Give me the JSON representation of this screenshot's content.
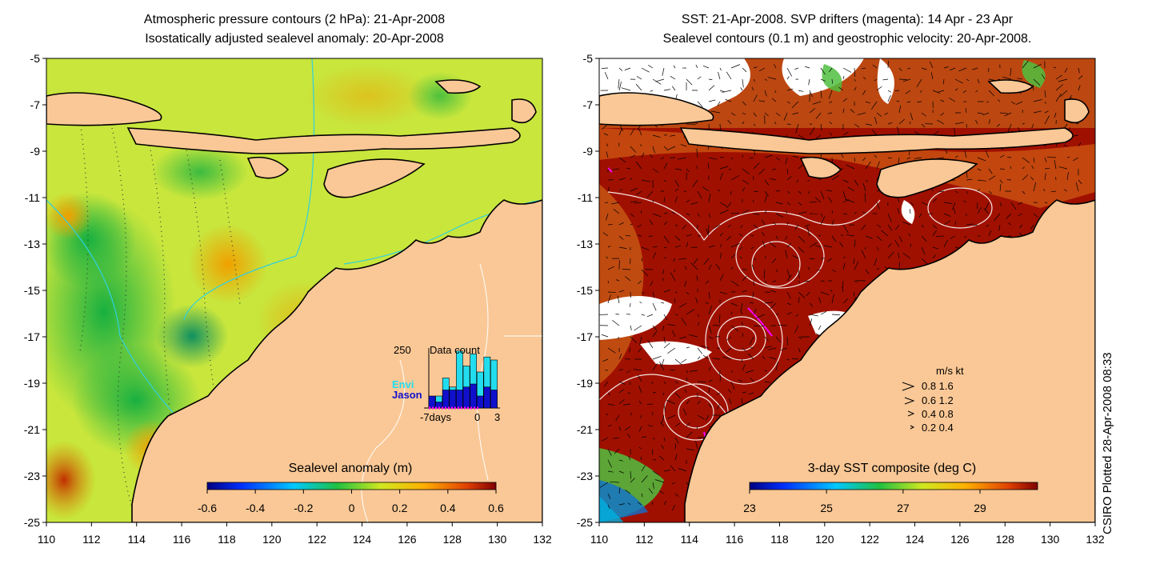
{
  "left_panel": {
    "title_line1": "Atmospheric pressure contours (2 hPa): 21-Apr-2008",
    "title_line2": "Isostatically adjusted sealevel anomaly: 20-Apr-2008",
    "colorbar_label": "Sealevel anomaly (m)",
    "colorbar_ticks": [
      "-0.6",
      "-0.4",
      "-0.2",
      "0",
      "0.2",
      "0.4",
      "0.6"
    ],
    "inset": {
      "max_label": "250",
      "title": "Data count",
      "series": [
        "Envi",
        "Jason"
      ],
      "series_colors": [
        "#22ddee",
        "#1010cc"
      ],
      "x_ticks": [
        "-7days",
        "0",
        "3"
      ],
      "envi_counts": [
        0.15,
        0.2,
        0.5,
        0.35,
        0.95,
        0.7,
        0.9,
        0.6,
        0.85,
        0.8
      ],
      "jason_counts": [
        0.2,
        0.1,
        0.3,
        0.3,
        0.3,
        0.35,
        0.4,
        0.2,
        0.35,
        0.3
      ]
    }
  },
  "right_panel": {
    "title_line1": "SST: 21-Apr-2008. SVP drifters (magenta): 14 Apr - 23 Apr",
    "title_line2": "Sealevel contours (0.1 m) and geostrophic velocity: 20-Apr-2008.",
    "colorbar_label": "3-day SST composite (deg C)",
    "colorbar_ticks": [
      "23",
      "25",
      "27",
      "29"
    ],
    "speed_legend": {
      "header": "m/s  kt",
      "rows": [
        "0.8  1.6",
        "0.6  1.2",
        "0.4  0.8",
        "0.2  0.4"
      ]
    }
  },
  "axes": {
    "x_ticks": [
      "110",
      "112",
      "114",
      "116",
      "118",
      "120",
      "122",
      "124",
      "126",
      "128",
      "130",
      "132"
    ],
    "y_ticks": [
      "-5",
      "-7",
      "-9",
      "-11",
      "-13",
      "-15",
      "-17",
      "-19",
      "-21",
      "-23",
      "-25"
    ],
    "x_range": [
      110,
      132
    ],
    "y_range": [
      -25,
      -5
    ]
  },
  "credit": "CSIRO Plotted 28-Apr-2008 08:33",
  "colors": {
    "land": "#fac896",
    "sla_background": "#c8e63c",
    "sst_background": "#a01000"
  }
}
